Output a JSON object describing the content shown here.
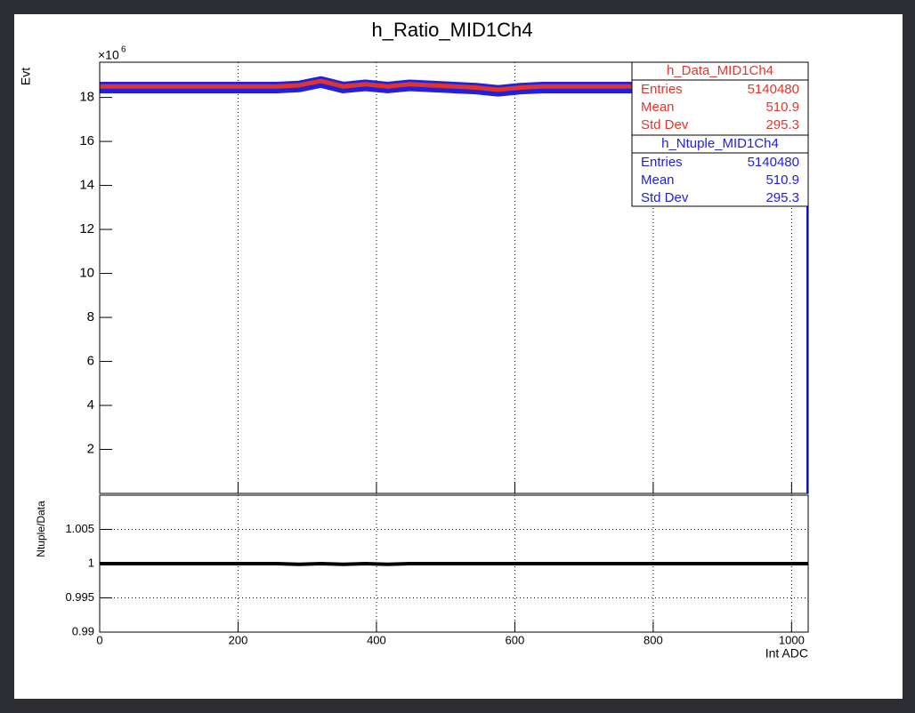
{
  "chart_data": [
    {
      "type": "line",
      "title": "h_Ratio_MID1Ch4",
      "ylabel": "Evt",
      "y_multiplier": "×10",
      "y_exponent": "6",
      "x": [
        0,
        32,
        64,
        96,
        128,
        160,
        192,
        224,
        256,
        288,
        320,
        352,
        384,
        416,
        448,
        480,
        512,
        544,
        576,
        608,
        640,
        672,
        704,
        736,
        768,
        800,
        832,
        864,
        896,
        928,
        960,
        992,
        1024
      ],
      "series": [
        {
          "name": "h_Data_MID1Ch4",
          "color": "#e3342b",
          "values": [
            18.5,
            18.5,
            18.5,
            18.5,
            18.5,
            18.5,
            18.5,
            18.5,
            18.5,
            18.55,
            18.75,
            18.5,
            18.6,
            18.5,
            18.6,
            18.55,
            18.5,
            18.45,
            18.35,
            18.45,
            18.5,
            18.5,
            18.5,
            18.5,
            18.5,
            18.5,
            18.5,
            18.5,
            18.5,
            18.5,
            18.5,
            18.5,
            18.5
          ]
        },
        {
          "name": "h_Ntuple_MID1Ch4",
          "color": "#2020e0",
          "values": [
            18.45,
            18.45,
            18.45,
            18.45,
            18.45,
            18.45,
            18.45,
            18.45,
            18.45,
            18.5,
            18.7,
            18.45,
            18.55,
            18.45,
            18.55,
            18.5,
            18.45,
            18.4,
            18.3,
            18.4,
            18.45,
            18.45,
            18.45,
            18.45,
            18.45,
            18.45,
            18.45,
            18.45,
            18.45,
            18.45,
            18.45,
            18.45,
            18.45
          ]
        }
      ],
      "stats": [
        {
          "rows": [
            [
              "Entries",
              5140480
            ],
            [
              "Mean",
              510.9
            ],
            [
              "Std Dev",
              295.3
            ]
          ]
        },
        {
          "rows": [
            [
              "Entries",
              5140480
            ],
            [
              "Mean",
              510.9
            ],
            [
              "Std Dev",
              295.3
            ]
          ]
        }
      ],
      "xlim": [
        0,
        1024
      ],
      "ylim": [
        0,
        19.6
      ],
      "yticks": [
        2,
        4,
        6,
        8,
        10,
        12,
        14,
        16,
        18
      ]
    },
    {
      "type": "line",
      "ylabel": "Ntuple/Data",
      "xlabel": "Int ADC",
      "x": [
        0,
        32,
        64,
        96,
        128,
        160,
        192,
        224,
        256,
        288,
        320,
        352,
        384,
        416,
        448,
        480,
        512,
        544,
        576,
        608,
        640,
        672,
        704,
        736,
        768,
        800,
        832,
        864,
        896,
        928,
        960,
        992,
        1024
      ],
      "series": [
        {
          "color": "#000000",
          "values": [
            1,
            1,
            1,
            1,
            1,
            1,
            1,
            1,
            1,
            0.9999,
            1,
            0.9999,
            1,
            0.9999,
            1,
            1,
            1,
            1,
            1,
            1,
            1,
            1,
            1,
            1,
            1,
            1,
            1,
            1,
            1,
            1,
            1,
            1,
            1
          ]
        }
      ],
      "xlim": [
        0,
        1024
      ],
      "xticks": [
        0,
        200,
        400,
        600,
        800,
        1000
      ],
      "ylim": [
        0.99,
        1.01
      ],
      "yticks": [
        0.99,
        0.995,
        1,
        1.005
      ],
      "grid": true
    }
  ]
}
